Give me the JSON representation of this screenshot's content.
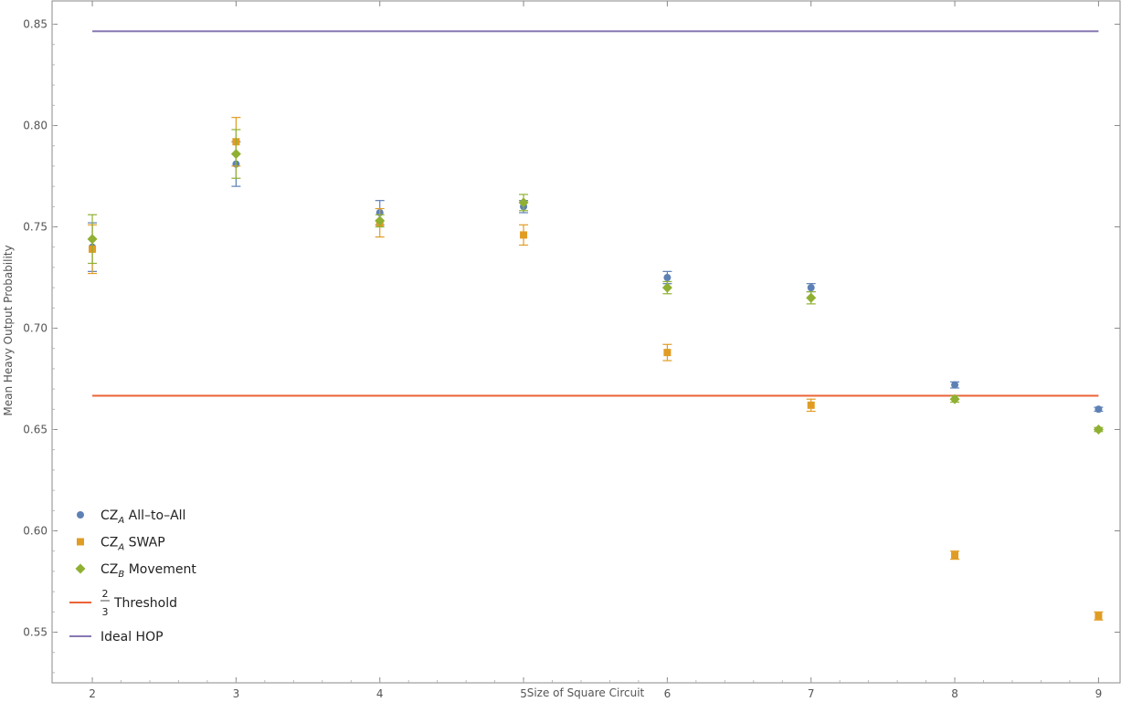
{
  "chart_data": {
    "type": "scatter",
    "xlabel": "Size of Square Circuit",
    "ylabel": "Mean Heavy Output Probability",
    "xlim": [
      1.72,
      9.15
    ],
    "ylim": [
      0.525,
      0.8615
    ],
    "x_ticks": [
      "2",
      "3",
      "4",
      "5",
      "6",
      "7",
      "8",
      "9"
    ],
    "y_ticks": [
      "0.55",
      "0.60",
      "0.65",
      "0.70",
      "0.75",
      "0.80",
      "0.85"
    ],
    "grid": false,
    "legend_position": "bottom-left",
    "series": [
      {
        "name": "CZ_A All-to-All",
        "legend_main": "CZ",
        "legend_sub": "A",
        "legend_rest": " All–to–All",
        "marker": "circle",
        "color": "#5E81B5",
        "x": [
          2,
          3,
          4,
          5,
          6,
          7,
          8,
          9
        ],
        "y": [
          0.74,
          0.781,
          0.757,
          0.76,
          0.725,
          0.72,
          0.672,
          0.66
        ],
        "err": [
          0.012,
          0.011,
          0.006,
          0.003,
          0.003,
          0.002,
          0.0015,
          0.001
        ]
      },
      {
        "name": "CZ_A SWAP",
        "legend_main": "CZ",
        "legend_sub": "A",
        "legend_rest": " SWAP",
        "marker": "square",
        "color": "#E19C24",
        "x": [
          2,
          3,
          4,
          5,
          6,
          7,
          8,
          9
        ],
        "y": [
          0.739,
          0.792,
          0.752,
          0.746,
          0.688,
          0.662,
          0.588,
          0.558
        ],
        "err": [
          0.012,
          0.012,
          0.007,
          0.005,
          0.004,
          0.003,
          0.002,
          0.002
        ]
      },
      {
        "name": "CZ_B Movement",
        "legend_main": "CZ",
        "legend_sub": "B",
        "legend_rest": " Movement",
        "marker": "diamond",
        "color": "#8FB032",
        "x": [
          2,
          3,
          4,
          5,
          6,
          7,
          8,
          9
        ],
        "y": [
          0.744,
          0.786,
          0.753,
          0.762,
          0.72,
          0.715,
          0.665,
          0.65
        ],
        "err": [
          0.012,
          0.012,
          0.003,
          0.004,
          0.003,
          0.003,
          0.0015,
          0.001
        ]
      }
    ],
    "reference_lines": [
      {
        "name": "2/3 Threshold",
        "frac_num": "2",
        "frac_den": "3",
        "text": "Threshold",
        "y": 0.6667,
        "x_range": [
          2,
          9
        ],
        "color": "#EB6235"
      },
      {
        "name": "Ideal HOP",
        "text": "Ideal HOP",
        "y": 0.8465,
        "x_range": [
          2,
          9
        ],
        "color": "#8778B3"
      }
    ]
  }
}
